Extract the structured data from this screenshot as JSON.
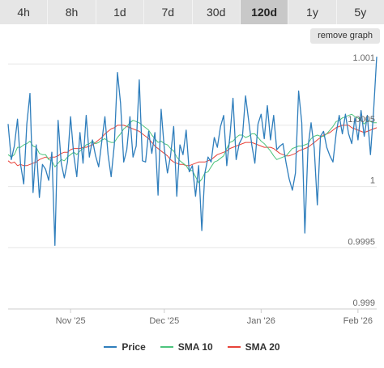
{
  "range_tabs": [
    {
      "label": "4h",
      "active": false
    },
    {
      "label": "8h",
      "active": false
    },
    {
      "label": "1d",
      "active": false
    },
    {
      "label": "7d",
      "active": false
    },
    {
      "label": "30d",
      "active": false
    },
    {
      "label": "120d",
      "active": true
    },
    {
      "label": "1y",
      "active": false
    },
    {
      "label": "5y",
      "active": false
    }
  ],
  "remove_graph_label": "remove graph",
  "chart_data": {
    "type": "line",
    "title": "",
    "xlabel": "",
    "ylabel": "",
    "ylim": [
      0.999,
      1.0011
    ],
    "y_ticks": [
      {
        "value": 0.999,
        "label": "0.999"
      },
      {
        "value": 0.9995,
        "label": "0.9995"
      },
      {
        "value": 1.0,
        "label": "1"
      },
      {
        "value": 1.0005,
        "label": "1.0005"
      },
      {
        "value": 1.001,
        "label": "1.001"
      }
    ],
    "x_range": [
      0,
      118
    ],
    "x_ticks": [
      {
        "x": 20,
        "label": "Nov '25"
      },
      {
        "x": 50,
        "label": "Dec '25"
      },
      {
        "x": 81,
        "label": "Jan '26"
      },
      {
        "x": 112,
        "label": "Feb '26"
      }
    ],
    "grid": true,
    "legend_position": "bottom",
    "series": [
      {
        "name": "Price",
        "color": "#2f7ebc",
        "values": [
          1.00051,
          1.00022,
          1.00033,
          1.00055,
          1.00018,
          1.00002,
          1.00051,
          1.00076,
          0.99995,
          1.00034,
          0.99991,
          1.00018,
          1.00014,
          1.00005,
          1.00028,
          0.99952,
          1.00054,
          1.00019,
          1.00007,
          1.0002,
          1.00057,
          1.00026,
          1.00008,
          1.00044,
          1.00019,
          1.00058,
          1.00024,
          1.00038,
          1.00025,
          1.00016,
          1.00037,
          1.00057,
          1.00026,
          1.00008,
          1.00034,
          1.00093,
          1.00068,
          1.0002,
          1.0003,
          1.00057,
          1.00024,
          1.00033,
          1.00087,
          1.00021,
          1.0002,
          1.00045,
          1.00027,
          1.00044,
          0.99993,
          1.00063,
          1.00031,
          1.00011,
          1.00025,
          1.00049,
          0.99992,
          1.00034,
          1.00026,
          1.00046,
          1.00012,
          1.00017,
          0.99992,
          1.00017,
          0.99964,
          1.00011,
          1.00024,
          1.0002,
          1.0004,
          1.00032,
          1.00049,
          1.00058,
          1.00017,
          1.00041,
          1.00072,
          1.00022,
          1.00035,
          1.0004,
          1.00074,
          1.00054,
          1.00034,
          1.00019,
          1.00051,
          1.00059,
          1.00039,
          1.00066,
          1.00038,
          1.00058,
          1.0003,
          1.00033,
          1.00035,
          1.00019,
          1.00006,
          0.99997,
          1.00011,
          1.00078,
          1.00052,
          0.99962,
          1.00032,
          1.00052,
          1.00031,
          0.99985,
          1.00041,
          1.00045,
          1.00032,
          1.00025,
          1.0002,
          1.00043,
          1.00058,
          1.00043,
          1.00059,
          1.00043,
          1.00035,
          1.00056,
          1.00038,
          1.00062,
          1.00041,
          1.00058,
          1.00026,
          1.00061,
          1.00106
        ]
      },
      {
        "name": "SMA 10",
        "color": "#4dc47d",
        "values": [
          1.00026,
          1.00024,
          1.00026,
          1.00032,
          1.00032,
          1.00034,
          1.00035,
          1.00037,
          1.00033,
          1.00032,
          1.00027,
          1.00026,
          1.00026,
          1.00022,
          1.00021,
          1.00016,
          1.00019,
          1.00022,
          1.00021,
          1.00024,
          1.00026,
          1.00028,
          1.00026,
          1.00029,
          1.00031,
          1.00034,
          1.00035,
          1.00037,
          1.00035,
          1.00036,
          1.00038,
          1.00039,
          1.00037,
          1.00036,
          1.00036,
          1.0004,
          1.00043,
          1.00047,
          1.00049,
          1.00052,
          1.00054,
          1.00053,
          1.00052,
          1.0005,
          1.00048,
          1.00046,
          1.00042,
          1.00039,
          1.00036,
          1.00037,
          1.00035,
          1.00034,
          1.00031,
          1.00029,
          1.00024,
          1.00021,
          1.00019,
          1.00017,
          1.00013,
          1.00013,
          1.00008,
          1.00003,
          1.00006,
          1.00011,
          1.00012,
          1.00016,
          1.0002,
          1.00021,
          1.00023,
          1.00025,
          1.00031,
          1.00036,
          1.00037,
          1.0004,
          1.00042,
          1.00042,
          1.0004,
          1.00041,
          1.00043,
          1.00043,
          1.0004,
          1.00037,
          1.00035,
          1.00032,
          1.00029,
          1.00025,
          1.00022,
          1.00023,
          1.00024,
          1.00025,
          1.00028,
          1.00031,
          1.00032,
          1.00033,
          1.00033,
          1.00034,
          1.00035,
          1.00039,
          1.00041,
          1.00042,
          1.00041,
          1.00041,
          1.00043,
          1.00046,
          1.00049,
          1.00053,
          1.00054,
          1.00056,
          1.00057,
          1.00058,
          1.00059,
          1.00057,
          1.00056,
          1.00054,
          1.00051,
          1.00054,
          1.00053,
          1.00052,
          1.00052
        ]
      },
      {
        "name": "SMA 20",
        "color": "#e8433a",
        "values": [
          1.00021,
          1.00019,
          1.0002,
          1.00017,
          1.00018,
          1.00017,
          1.00017,
          1.00018,
          1.00019,
          1.0002,
          1.00022,
          1.00023,
          1.00024,
          1.00023,
          1.00024,
          1.00024,
          1.00025,
          1.00027,
          1.00028,
          1.00028,
          1.0003,
          1.00031,
          1.00031,
          1.00031,
          1.00032,
          1.00032,
          1.00033,
          1.00034,
          1.00036,
          1.00038,
          1.0004,
          1.00043,
          1.00045,
          1.00047,
          1.00048,
          1.0005,
          1.0005,
          1.0005,
          1.00049,
          1.00048,
          1.00047,
          1.00046,
          1.00045,
          1.00043,
          1.00041,
          1.00039,
          1.00036,
          1.00033,
          1.00031,
          1.00029,
          1.00027,
          1.00025,
          1.00022,
          1.0002,
          1.00019,
          1.00018,
          1.00018,
          1.00017,
          1.00017,
          1.00018,
          1.00019,
          1.0002,
          1.0002,
          1.0002,
          1.00021,
          1.00022,
          1.00024,
          1.00026,
          1.00027,
          1.00028,
          1.00029,
          1.00031,
          1.00032,
          1.00033,
          1.00034,
          1.00035,
          1.00036,
          1.00036,
          1.00036,
          1.00035,
          1.00034,
          1.00033,
          1.00032,
          1.00032,
          1.00032,
          1.00031,
          1.00029,
          1.00027,
          1.00026,
          1.00025,
          1.00025,
          1.00026,
          1.00027,
          1.00029,
          1.0003,
          1.00031,
          1.00032,
          1.00034,
          1.00036,
          1.00038,
          1.0004,
          1.00042,
          1.00043,
          1.00044,
          1.00046,
          1.00048,
          1.00049,
          1.0005,
          1.0005,
          1.0005,
          1.00048,
          1.00047,
          1.00046,
          1.00045,
          1.00044,
          1.00045,
          1.00046,
          1.00047,
          1.00048
        ]
      }
    ]
  }
}
